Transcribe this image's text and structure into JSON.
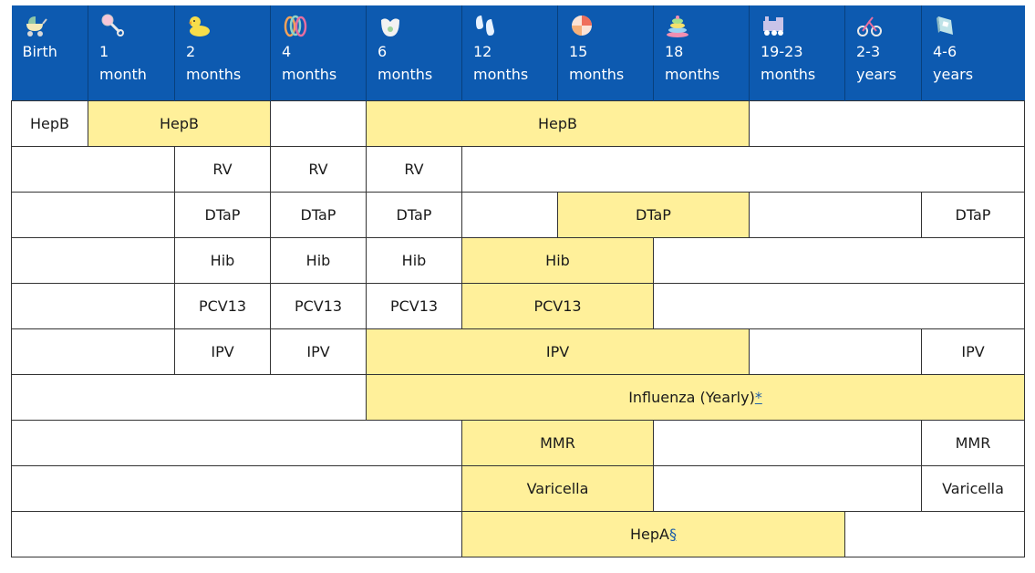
{
  "header": {
    "columns": [
      {
        "line1": "Birth",
        "line2": "",
        "icon": "baby-carriage-icon"
      },
      {
        "line1": "1",
        "line2": "month",
        "icon": "rattle-icon"
      },
      {
        "line1": "2",
        "line2": "months",
        "icon": "rubber-duck-icon"
      },
      {
        "line1": "4",
        "line2": "months",
        "icon": "rings-toy-icon"
      },
      {
        "line1": "6",
        "line2": "months",
        "icon": "bib-icon"
      },
      {
        "line1": "12",
        "line2": "months",
        "icon": "baby-shoes-icon"
      },
      {
        "line1": "15",
        "line2": "months",
        "icon": "beach-ball-icon"
      },
      {
        "line1": "18",
        "line2": "months",
        "icon": "stacking-rings-icon"
      },
      {
        "line1": "19-23",
        "line2": "months",
        "icon": "toy-train-icon"
      },
      {
        "line1": "2-3",
        "line2": "years",
        "icon": "tricycle-icon"
      },
      {
        "line1": "4-6",
        "line2": "years",
        "icon": "book-icon"
      }
    ]
  },
  "rows": {
    "hepb": {
      "birth": "HepB",
      "m1_2": "HepB",
      "m6_18": "HepB"
    },
    "rv": {
      "m2": "RV",
      "m4": "RV",
      "m6": "RV"
    },
    "dtap": {
      "m2": "DTaP",
      "m4": "DTaP",
      "m6": "DTaP",
      "m15_18": "DTaP",
      "y4_6": "DTaP"
    },
    "hib": {
      "m2": "Hib",
      "m4": "Hib",
      "m6": "Hib",
      "m12_15": "Hib"
    },
    "pcv13": {
      "m2": "PCV13",
      "m4": "PCV13",
      "m6": "PCV13",
      "m12_15": "PCV13"
    },
    "ipv": {
      "m2": "IPV",
      "m4": "IPV",
      "m6_18": "IPV",
      "y4_6": "IPV"
    },
    "influenza": {
      "label": "Influenza (Yearly)",
      "footnote": "*"
    },
    "mmr": {
      "m12_15": "MMR",
      "y4_6": "MMR"
    },
    "varicella": {
      "m12_15": "Varicella",
      "y4_6": "Varicella"
    },
    "hepa": {
      "label": "HepA",
      "footnote": "§"
    }
  },
  "colors": {
    "header_bg": "#0d5ab0",
    "recommended_range": "#fff09a",
    "border": "#333333"
  }
}
